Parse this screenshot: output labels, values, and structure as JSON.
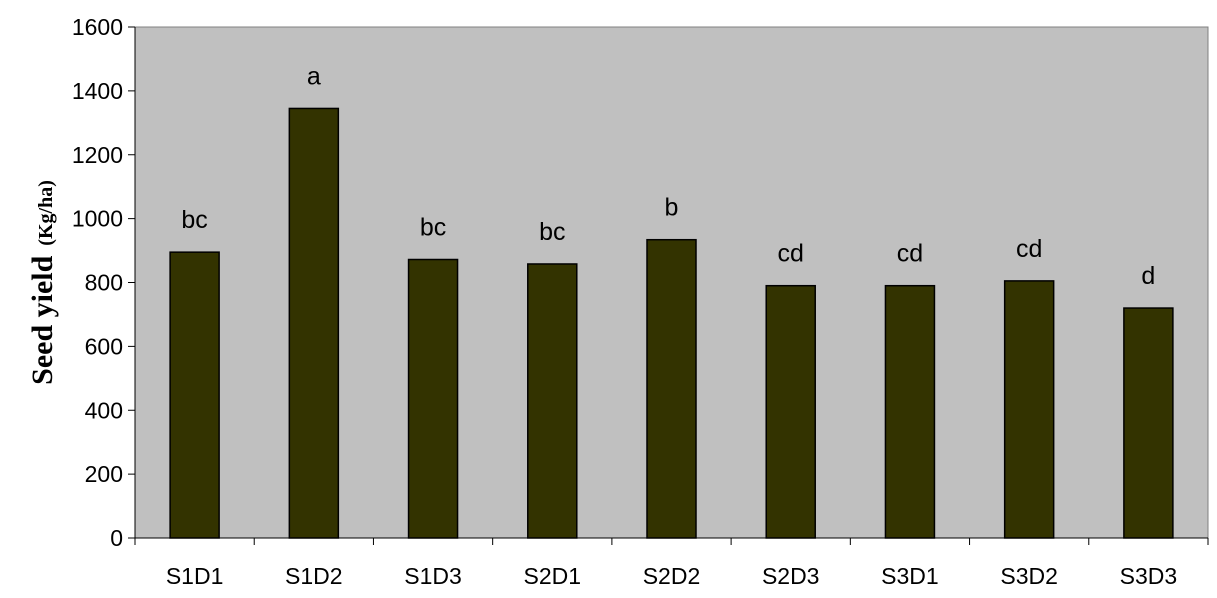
{
  "chart_data": {
    "type": "bar",
    "categories": [
      "S1D1",
      "S1D2",
      "S1D3",
      "S2D1",
      "S2D2",
      "S2D3",
      "S3D1",
      "S3D2",
      "S3D3"
    ],
    "values": [
      895,
      1345,
      872,
      858,
      934,
      790,
      790,
      805,
      720
    ],
    "letters": [
      "bc",
      "a",
      "bc",
      "bc",
      "b",
      "cd",
      "cd",
      "cd",
      "d"
    ],
    "title": "",
    "xlabel": "",
    "ylabel_main": "Seed yield",
    "ylabel_unit": "(Kg/ha)",
    "ylim": [
      0,
      1600
    ],
    "yticks": [
      0,
      200,
      400,
      600,
      800,
      1000,
      1200,
      1400,
      1600
    ],
    "grid": false,
    "legend": "none",
    "colors": {
      "plot_bg": "#c0c0c0",
      "bar_fill": "#333300",
      "bar_stroke": "#000000",
      "axis": "#000000",
      "text": "#000000"
    }
  }
}
